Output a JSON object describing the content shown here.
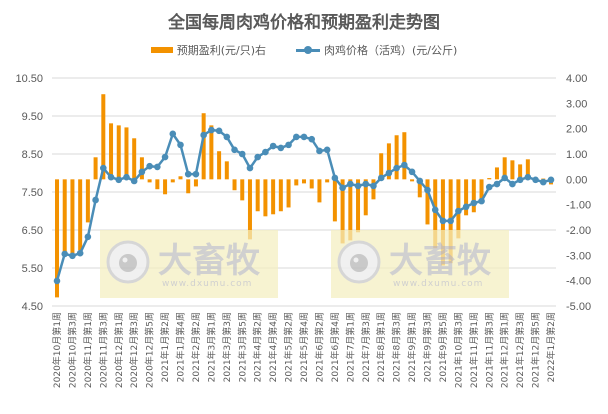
{
  "chart_data": {
    "type": "bar+line",
    "title": "全国每周肉鸡价格和预期盈利走势图",
    "legend": [
      "预期盈利(元/只)右",
      "肉鸡价格（活鸡）(元/公斤)"
    ],
    "legend_position": "top",
    "grid": true,
    "left_axis": {
      "label": "肉鸡价格（活鸡）(元/公斤)",
      "range": [
        4.5,
        10.5
      ],
      "ticks": [
        "10.50",
        "9.50",
        "8.50",
        "7.50",
        "6.50",
        "5.50",
        "4.50"
      ]
    },
    "right_axis": {
      "label": "预期盈利(元/只)",
      "range": [
        -5,
        4
      ],
      "ticks": [
        "4.00",
        "3.00",
        "2.00",
        "1.00",
        "0.00",
        "-1.00",
        "-2.00",
        "-3.00",
        "-4.00",
        "-5.00"
      ]
    },
    "x_tick_labels": [
      "2020年10月第1周",
      "2020年10月第3周",
      "2020年11月第1周",
      "2020年11月第3周",
      "2020年12月第1周",
      "2020年12月第3周",
      "2020年12月第5周",
      "2021年1月第2周",
      "2021年1月第4周",
      "2021年2月第2周",
      "2021年3月第1周",
      "2021年3月第3周",
      "2021年3月第5周",
      "2021年4月第2周",
      "2021年4月第4周",
      "2021年5月第2周",
      "2021年5月第4周",
      "2021年6月第2周",
      "2021年6月第4周",
      "2021年7月第1周",
      "2021年7月第3周",
      "2021年8月第1周",
      "2021年8月第3周",
      "2021年9月第1周",
      "2021年9月第3周",
      "2021年9月第5周",
      "2021年10月第3周",
      "2021年11月第1周",
      "2021年11月第3周",
      "2021年12月第1周",
      "2021年12月第3周",
      "2021年12月第5周",
      "2022年1月第2周"
    ],
    "series": [
      {
        "name": "预期盈利(元/只)右",
        "type": "bar",
        "axis": "right",
        "color": "#f39200",
        "values": [
          -4.66,
          -2.92,
          -3.0,
          -2.8,
          -1.7,
          0.87,
          3.36,
          2.21,
          2.13,
          2.05,
          1.62,
          0.87,
          -0.12,
          -0.39,
          -0.59,
          -0.12,
          0.12,
          -0.55,
          -0.28,
          2.61,
          2.13,
          1.11,
          0.71,
          -0.43,
          -0.83,
          -2.37,
          -1.26,
          -1.46,
          -1.38,
          -1.26,
          -1.11,
          -0.24,
          -0.16,
          -0.36,
          -0.91,
          -0.12,
          -1.66,
          -2.53,
          -2.41,
          -2.09,
          -1.42,
          -0.79,
          1.03,
          1.42,
          1.74,
          1.86,
          -0.08,
          -0.71,
          -1.78,
          -2.72,
          -3.4,
          -3.31,
          -2.33,
          -1.42,
          -1.3,
          -0.9,
          0.05,
          0.47,
          0.87,
          0.75,
          0.59,
          0.79,
          0.04,
          0.03,
          -0.2
        ]
      },
      {
        "name": "肉鸡价格（活鸡）(元/公斤)",
        "type": "line",
        "axis": "left",
        "color": "#4a8db7",
        "values": [
          5.16,
          5.87,
          5.82,
          5.89,
          6.32,
          7.29,
          8.13,
          7.89,
          7.82,
          7.89,
          7.79,
          8.03,
          8.18,
          8.16,
          8.42,
          9.03,
          8.74,
          7.97,
          7.97,
          9.0,
          9.13,
          9.11,
          8.95,
          8.61,
          8.5,
          8.13,
          8.42,
          8.55,
          8.71,
          8.66,
          8.74,
          8.95,
          8.95,
          8.89,
          8.58,
          8.61,
          7.87,
          7.61,
          7.71,
          7.66,
          7.71,
          7.66,
          7.87,
          8.0,
          8.13,
          8.21,
          8.03,
          7.79,
          7.55,
          7.03,
          6.74,
          6.74,
          7.0,
          7.11,
          7.21,
          7.26,
          7.63,
          7.71,
          7.87,
          7.71,
          7.82,
          7.89,
          7.82,
          7.76,
          7.82
        ]
      }
    ]
  },
  "header": {
    "title": "全国每周肉鸡价格和预期盈利走势图"
  },
  "legend": {
    "bar_label": "预期盈利(元/只)右",
    "line_label": "肉鸡价格（活鸡）(元/公斤)"
  },
  "watermark": {
    "brand": "大畜牧",
    "url": "www.dxumu.com"
  },
  "colors": {
    "bar": "#f39200",
    "line": "#4a8db7",
    "grid": "#d9d9d9",
    "watermark_bg": "#f5efc0"
  }
}
